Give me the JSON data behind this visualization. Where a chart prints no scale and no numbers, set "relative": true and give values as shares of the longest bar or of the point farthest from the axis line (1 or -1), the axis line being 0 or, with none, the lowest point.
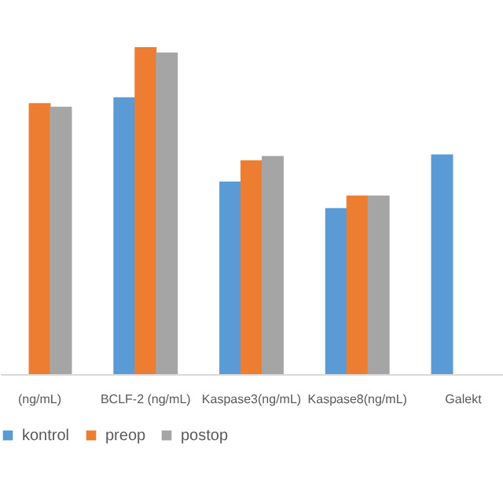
{
  "chart_data": {
    "type": "bar",
    "relative": true,
    "legend": "bottom",
    "categories": [
      "(ng/mL)",
      "BCLF-2 (ng/mL)",
      "Kaspase3(ng/mL)",
      "Kaspase8(ng/mL)",
      "Galekt"
    ],
    "series": [
      {
        "name": "kontrol",
        "color": "#5b9bd5",
        "values": [
          null,
          0.847,
          0.589,
          0.508,
          0.672
        ]
      },
      {
        "name": "preop",
        "color": "#ed7d31",
        "values": [
          0.829,
          1,
          0.654,
          0.546,
          null
        ]
      },
      {
        "name": "postop",
        "color": "#a5a5a5",
        "values": [
          0.818,
          0.984,
          0.667,
          0.546,
          null
        ]
      }
    ]
  }
}
